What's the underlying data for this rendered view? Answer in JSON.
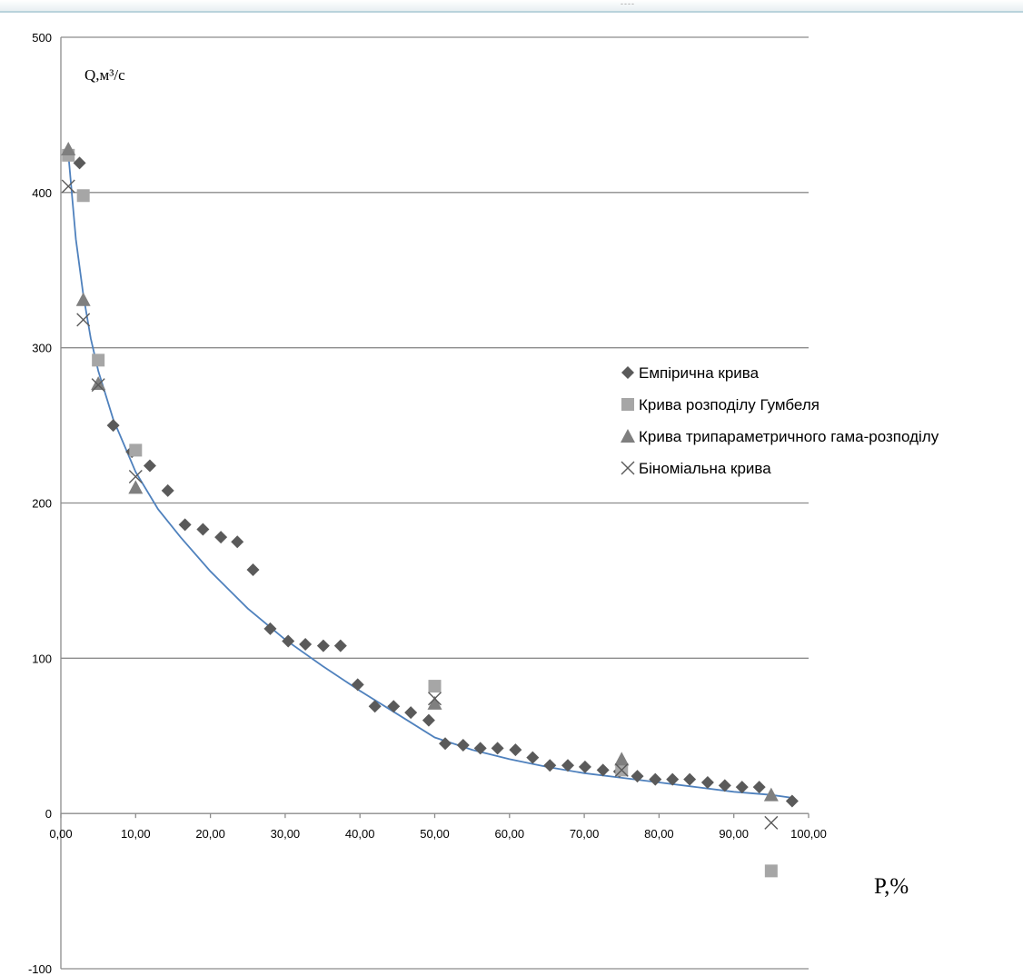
{
  "top_marker": "----",
  "chart_data": {
    "type": "scatter",
    "title": "",
    "xlabel": "P,%",
    "ylabel": "Q,м³/с",
    "xlim": [
      0,
      100
    ],
    "ylim": [
      -100,
      500
    ],
    "grid": true,
    "legend_position": "right",
    "x_ticks": [
      "0,00",
      "10,00",
      "20,00",
      "30,00",
      "40,00",
      "50,00",
      "60,00",
      "70,00",
      "80,00",
      "90,00",
      "100,00"
    ],
    "y_ticks": [
      "500",
      "400",
      "300",
      "200",
      "100",
      "0",
      "-100"
    ],
    "series": [
      {
        "name": "Емпірична крива",
        "marker": "diamond",
        "color": "#5a5a5a",
        "points": [
          [
            2.5,
            419
          ],
          [
            7,
            250
          ],
          [
            9.5,
            233
          ],
          [
            11.9,
            224
          ],
          [
            14.3,
            208
          ],
          [
            16.6,
            186
          ],
          [
            19,
            183
          ],
          [
            21.4,
            178
          ],
          [
            23.6,
            175
          ],
          [
            25.7,
            157
          ],
          [
            28,
            119
          ],
          [
            30.4,
            111
          ],
          [
            32.7,
            109
          ],
          [
            35.1,
            108
          ],
          [
            37.4,
            108
          ],
          [
            39.7,
            83
          ],
          [
            42,
            69
          ],
          [
            44.5,
            69
          ],
          [
            46.8,
            65
          ],
          [
            49.2,
            60
          ],
          [
            51.4,
            45
          ],
          [
            53.8,
            44
          ],
          [
            56.1,
            42
          ],
          [
            58.4,
            42
          ],
          [
            60.8,
            41
          ],
          [
            63.1,
            36
          ],
          [
            65.4,
            31
          ],
          [
            67.8,
            31
          ],
          [
            70.1,
            30
          ],
          [
            72.5,
            28
          ],
          [
            74.7,
            27
          ],
          [
            77.1,
            24
          ],
          [
            79.5,
            22
          ],
          [
            81.8,
            22
          ],
          [
            84.1,
            22
          ],
          [
            86.5,
            20
          ],
          [
            88.8,
            18
          ],
          [
            91.1,
            17
          ],
          [
            93.4,
            17
          ],
          [
            97.8,
            8
          ]
        ]
      },
      {
        "name": "Крива розподілу Гумбеля",
        "marker": "square",
        "color": "#a6a6a6",
        "points": [
          [
            1,
            424
          ],
          [
            3,
            398
          ],
          [
            5,
            292
          ],
          [
            10,
            234
          ],
          [
            50,
            82
          ],
          [
            75,
            28
          ],
          [
            95,
            -37
          ]
        ]
      },
      {
        "name": "Крива трипараметричного гама-розподілу",
        "marker": "triangle",
        "color": "#7f7f7f",
        "points": [
          [
            1,
            428
          ],
          [
            3,
            331
          ],
          [
            5,
            277
          ],
          [
            10,
            210
          ],
          [
            50,
            71
          ],
          [
            75,
            35
          ],
          [
            95,
            12
          ]
        ]
      },
      {
        "name": "Біноміальна крива",
        "marker": "x",
        "color": "#5a5a5a",
        "points": [
          [
            1,
            404
          ],
          [
            3,
            318
          ],
          [
            5,
            276
          ],
          [
            10,
            217
          ],
          [
            50,
            74
          ],
          [
            75,
            28
          ],
          [
            95,
            -6
          ]
        ]
      },
      {
        "name": "",
        "type": "line",
        "color": "#4f81bd",
        "points": [
          [
            1,
            425
          ],
          [
            2,
            370
          ],
          [
            3,
            334
          ],
          [
            4,
            306
          ],
          [
            5,
            285
          ],
          [
            7,
            254
          ],
          [
            10,
            220
          ],
          [
            13,
            196
          ],
          [
            16,
            178
          ],
          [
            20,
            156
          ],
          [
            25,
            132
          ],
          [
            30,
            112
          ],
          [
            35,
            95
          ],
          [
            40,
            79
          ],
          [
            45,
            64
          ],
          [
            50,
            49
          ],
          [
            55,
            41
          ],
          [
            60,
            35
          ],
          [
            65,
            30
          ],
          [
            70,
            26
          ],
          [
            75,
            23
          ],
          [
            80,
            20
          ],
          [
            85,
            17
          ],
          [
            90,
            14
          ],
          [
            95,
            12
          ],
          [
            98,
            10
          ]
        ]
      }
    ]
  }
}
